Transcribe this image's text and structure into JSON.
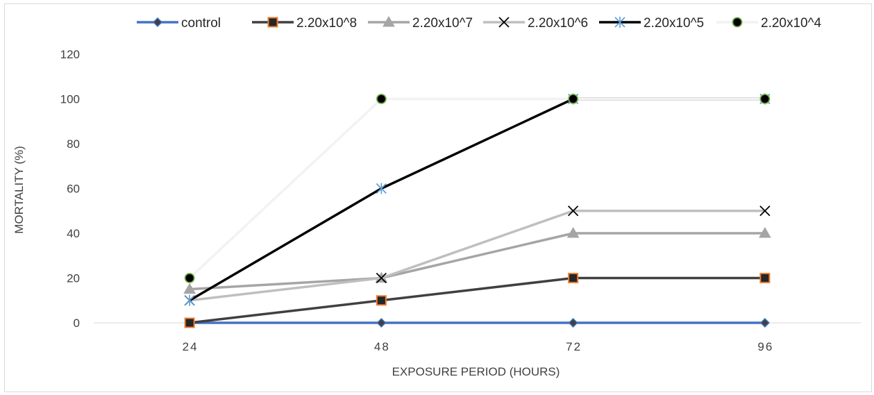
{
  "chart_data": {
    "type": "line",
    "title": "",
    "xlabel": "EXPOSURE PERIOD (HOURS)",
    "ylabel": "MORTALITY (%)",
    "categories": [
      "24",
      "48",
      "72",
      "96"
    ],
    "ylim": [
      0,
      120
    ],
    "yticks": [
      "0",
      "20",
      "40",
      "60",
      "80",
      "100",
      "120"
    ],
    "grid": false,
    "legend_position": "top",
    "series": [
      {
        "name": "control",
        "values": [
          0,
          0,
          0,
          0
        ],
        "line_color": "#4472c4",
        "marker": "diamond",
        "marker_fill": "#404040",
        "marker_stroke": "#4472c4"
      },
      {
        "name": "2.20x10^8",
        "values": [
          0,
          10,
          20,
          20
        ],
        "line_color": "#404040",
        "marker": "square",
        "marker_fill": "#262626",
        "marker_stroke": "#ed7d31"
      },
      {
        "name": "2.20x10^7",
        "values": [
          15,
          20,
          40,
          40
        ],
        "line_color": "#a5a5a5",
        "marker": "triangle",
        "marker_fill": "#a5a5a5",
        "marker_stroke": "#a5a5a5"
      },
      {
        "name": "2.20x10^6",
        "values": [
          10,
          20,
          50,
          50
        ],
        "line_color": "#bfbfbf",
        "marker": "x",
        "marker_fill": "none",
        "marker_stroke": "#000000"
      },
      {
        "name": "2.20x10^5",
        "values": [
          10,
          60,
          100,
          100
        ],
        "line_color": "#000000",
        "marker": "star",
        "marker_fill": "none",
        "marker_stroke": "#5b9bd5"
      },
      {
        "name": "2.20x10^4",
        "values": [
          20,
          100,
          100,
          100
        ],
        "line_color": "#f2f2f2",
        "marker": "circle",
        "marker_fill": "#000000",
        "marker_stroke": "#70ad47"
      }
    ]
  }
}
